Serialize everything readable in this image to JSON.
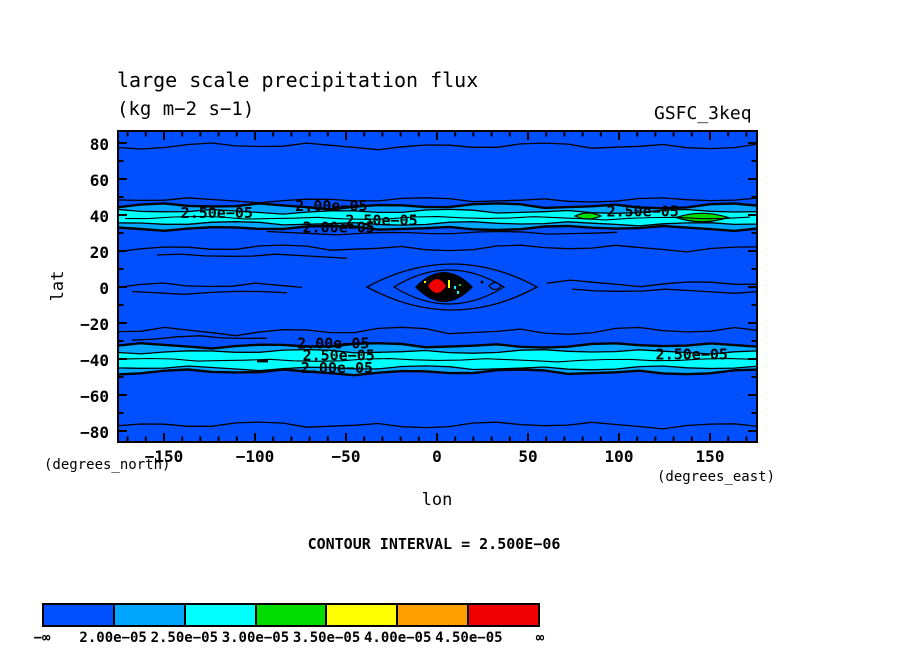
{
  "title": "large scale precipitation flux",
  "units_line": "(kg m−2 s−1)",
  "run_label": "GSFC_3keq",
  "axes": {
    "x_label": "lon",
    "y_label": "lat",
    "x_unit_note": "(degrees_east)",
    "y_unit_note": "(degrees_north)",
    "x_ticks": [
      -150,
      -100,
      -50,
      0,
      50,
      100,
      150
    ],
    "y_ticks": [
      80,
      60,
      40,
      20,
      0,
      -20,
      -40,
      -60,
      -80
    ]
  },
  "contour_note": "CONTOUR INTERVAL = 2.500E−06",
  "colorbar": {
    "segment_colors": [
      "#0050FF",
      "#00A6FF",
      "#00FFFF",
      "#00DC00",
      "#FFFF00",
      "#FFA000",
      "#F00000"
    ],
    "boundary_labels": [
      "−∞",
      "2.00e−05",
      "2.50e−05",
      "3.00e−05",
      "3.50e−05",
      "4.00e−05",
      "4.50e−05",
      "∞"
    ]
  },
  "chart_data": {
    "type": "contour",
    "plot_style": "filled contour map with line contours",
    "title": "large scale precipitation flux",
    "units": "kg m-2 s-1",
    "source_label": "GSFC_3keq",
    "xlabel": "lon (degrees_east)",
    "ylabel": "lat (degrees_north)",
    "xlim": [
      -180,
      180
    ],
    "ylim": [
      -90,
      90
    ],
    "x_ticks": [
      -150,
      -100,
      -50,
      0,
      50,
      100,
      150
    ],
    "y_ticks": [
      80,
      60,
      40,
      20,
      0,
      -20,
      -40,
      -60,
      -80
    ],
    "contour_interval": 2.5e-06,
    "fill_levels": [
      2e-05,
      2.5e-05,
      3e-05,
      3.5e-05,
      4e-05,
      4.5e-05
    ],
    "fill_colors": [
      "#0050FF",
      "#00A6FF",
      "#00FFFF",
      "#00DC00",
      "#FFFF00",
      "#FFA000",
      "#F00000"
    ],
    "contour_labels": [
      {
        "text": "2.50e−05",
        "lon": -121,
        "lat": 41
      },
      {
        "text": "2.00e−05",
        "lon": -58,
        "lat": 45
      },
      {
        "text": "2.00e−05",
        "lon": -54,
        "lat": 33
      },
      {
        "text": "2.50e−05",
        "lon": -30.5,
        "lat": 37
      },
      {
        "text": "2.50e−05",
        "lon": 113,
        "lat": 42
      },
      {
        "text": "2.00e−05",
        "lon": -57,
        "lat": -31.5
      },
      {
        "text": "2.50e−05",
        "lon": -54,
        "lat": -38
      },
      {
        "text": "2.00e−05",
        "lon": -55,
        "lat": -45
      },
      {
        "text": "2.50e−05",
        "lon": 140,
        "lat": -37.5
      }
    ],
    "features": [
      {
        "name": "northern midlatitude precipitation band",
        "lat_extent": [
          33,
          46
        ],
        "fill_value_range": "2.00e-05 to 3.50e-05",
        "notes": "zonal band, cyan core with small green (3.0e-05+) maxima near lon 85 and lon 145"
      },
      {
        "name": "southern midlatitude precipitation band",
        "lat_extent": [
          -47,
          -33
        ],
        "fill_value_range": "2.00e-05 to 3.00e-05",
        "notes": "zonal band with cyan core across most longitudes"
      },
      {
        "name": "equatorial maximum",
        "lon": 2,
        "lat": 0,
        "fill_value": "> 4.50e-05",
        "notes": "small intense red-core feature surrounded by tightly packed contours"
      },
      {
        "name": "background field",
        "fill_value": "< 2.00e-05",
        "notes": "blue background over most of the domain with sparse thin line contours"
      }
    ]
  }
}
